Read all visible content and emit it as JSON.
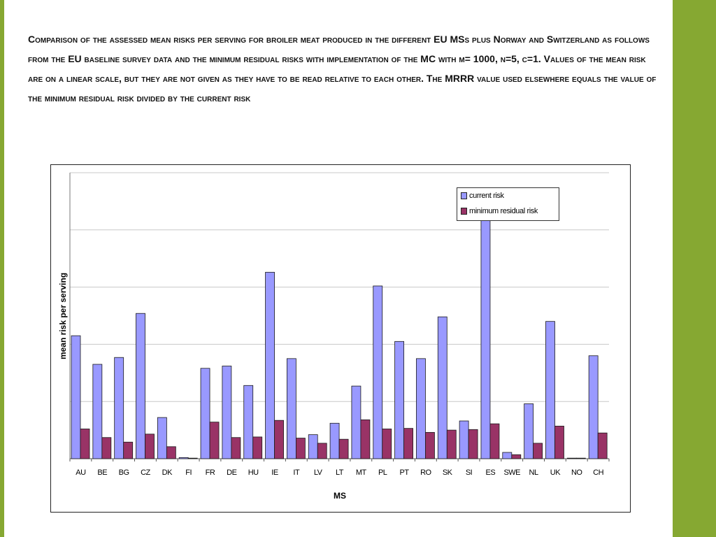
{
  "page": {
    "title": "Comparison of the assessed mean risks per serving for broiler meat produced in the different EU MSs plus Norway and Switzerland as follows from the EU baseline survey data and the minimum residual risks with implementation of the MC with m= 1000, n=5, c=1.  Values of the mean risk are on a linear scale, but they are not given as they have to be read relative to each other. The MRRR value used elsewhere equals the value of the minimum residual risk divided by the current risk"
  },
  "colors": {
    "accent_bar": "#86a832",
    "current": "#9999ff",
    "residual": "#993366"
  },
  "chart_data": {
    "type": "bar",
    "title": "",
    "xlabel": "MS",
    "ylabel": "mean risk per serving",
    "categories": [
      "AU",
      "BE",
      "BG",
      "CZ",
      "DK",
      "FI",
      "FR",
      "DE",
      "HU",
      "IE",
      "IT",
      "LV",
      "LT",
      "MT",
      "PL",
      "PT",
      "RO",
      "SK",
      "SI",
      "ES",
      "SWE",
      "NL",
      "UK",
      "NO",
      "CH"
    ],
    "series": [
      {
        "name": "current risk",
        "color": "#9999ff",
        "values": [
          215,
          165,
          177,
          254,
          72,
          2,
          158,
          162,
          128,
          326,
          175,
          42,
          62,
          127,
          302,
          205,
          175,
          248,
          66,
          422,
          11,
          96,
          240,
          1,
          180
        ]
      },
      {
        "name": "minimum residual risk",
        "color": "#993366",
        "values": [
          52,
          37,
          29,
          43,
          21,
          1,
          64,
          37,
          38,
          67,
          36,
          27,
          34,
          68,
          52,
          53,
          46,
          50,
          51,
          61,
          7,
          27,
          57,
          1,
          45
        ]
      }
    ],
    "ylim": [
      0,
      500
    ],
    "yticks": [
      0,
      100,
      200,
      300,
      400,
      500
    ],
    "show_y_tick_labels": false,
    "grid": true,
    "legend": "top-right"
  }
}
